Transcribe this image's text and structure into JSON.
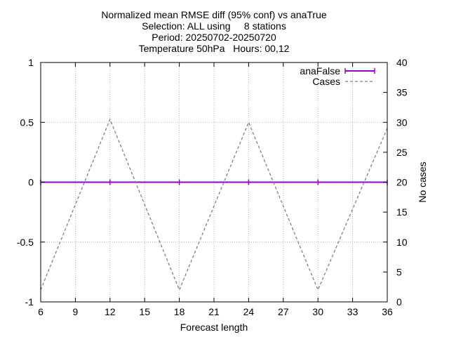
{
  "chart_data": {
    "type": "line",
    "title_lines": [
      "Normalized mean RMSE diff (95% conf) vs anaTrue",
      "Selection: ALL using     8 stations",
      "Period: 20250702-20250720",
      "Temperature 50hPa   Hours: 00,12"
    ],
    "xlabel": "Forecast length",
    "ylabel": "",
    "y2label": "No cases",
    "xlim": [
      6,
      36
    ],
    "ylim": [
      -1,
      1
    ],
    "y2lim": [
      0,
      40
    ],
    "xticks": [
      6,
      9,
      12,
      15,
      18,
      21,
      24,
      27,
      30,
      33,
      36
    ],
    "yticks": [
      -1,
      -0.5,
      0,
      0.5,
      1
    ],
    "yticklabels": [
      "-1",
      "-0.5",
      "0",
      "0.5",
      "1"
    ],
    "y2ticks": [
      0,
      5,
      10,
      15,
      20,
      25,
      30,
      35,
      40
    ],
    "grid": true,
    "legend_position": "top-right",
    "series": [
      {
        "name": "anaFalse",
        "axis": "y",
        "color": "#9400D3",
        "style": "solid-errorbars",
        "x": [
          6,
          12,
          18,
          24,
          30,
          36
        ],
        "y": [
          0,
          0,
          0,
          0,
          0,
          0
        ]
      },
      {
        "name": "Cases",
        "axis": "y2",
        "color": "#808080",
        "style": "dashed",
        "x": [
          6,
          12,
          18,
          24,
          30,
          36
        ],
        "y": [
          2,
          30.5,
          2,
          30,
          2,
          29
        ]
      }
    ]
  }
}
